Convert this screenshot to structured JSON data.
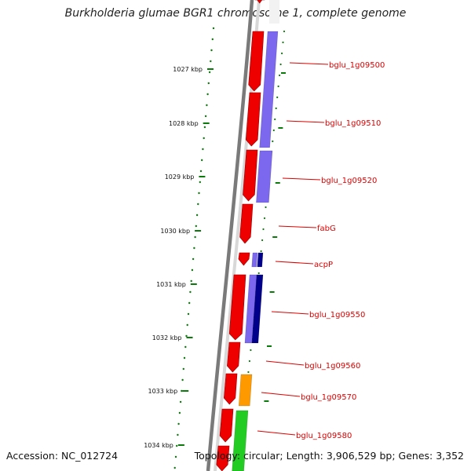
{
  "title": "Burkholderia glumae BGR1 chromosome 1, complete genome",
  "footer": {
    "accession": "Accession: NC_012724",
    "summary": "Topology: circular; Length: 3,906,529 bp; Genes: 3,352"
  },
  "colors": {
    "gene_label": "#dd0000",
    "tick": "#0a7a0a",
    "backbone": "#7a7a7a",
    "cds": "#ee0000",
    "blue_light": "#7b68ee",
    "blue_dark": "#00008b",
    "orange": "#ff9900",
    "green": "#22cc22"
  },
  "ticks": [
    "1027 kbp",
    "1028 kbp",
    "1029 kbp",
    "1030 kbp",
    "1031 kbp",
    "1032 kbp",
    "1033 kbp",
    "1034 kbp"
  ],
  "gene_labels": [
    "bglu_1g09500",
    "bglu_1g09510",
    "bglu_1g09520",
    "fabG",
    "acpP",
    "bglu_1g09550",
    "bglu_1g09560",
    "bglu_1g09570",
    "bglu_1g09580"
  ]
}
